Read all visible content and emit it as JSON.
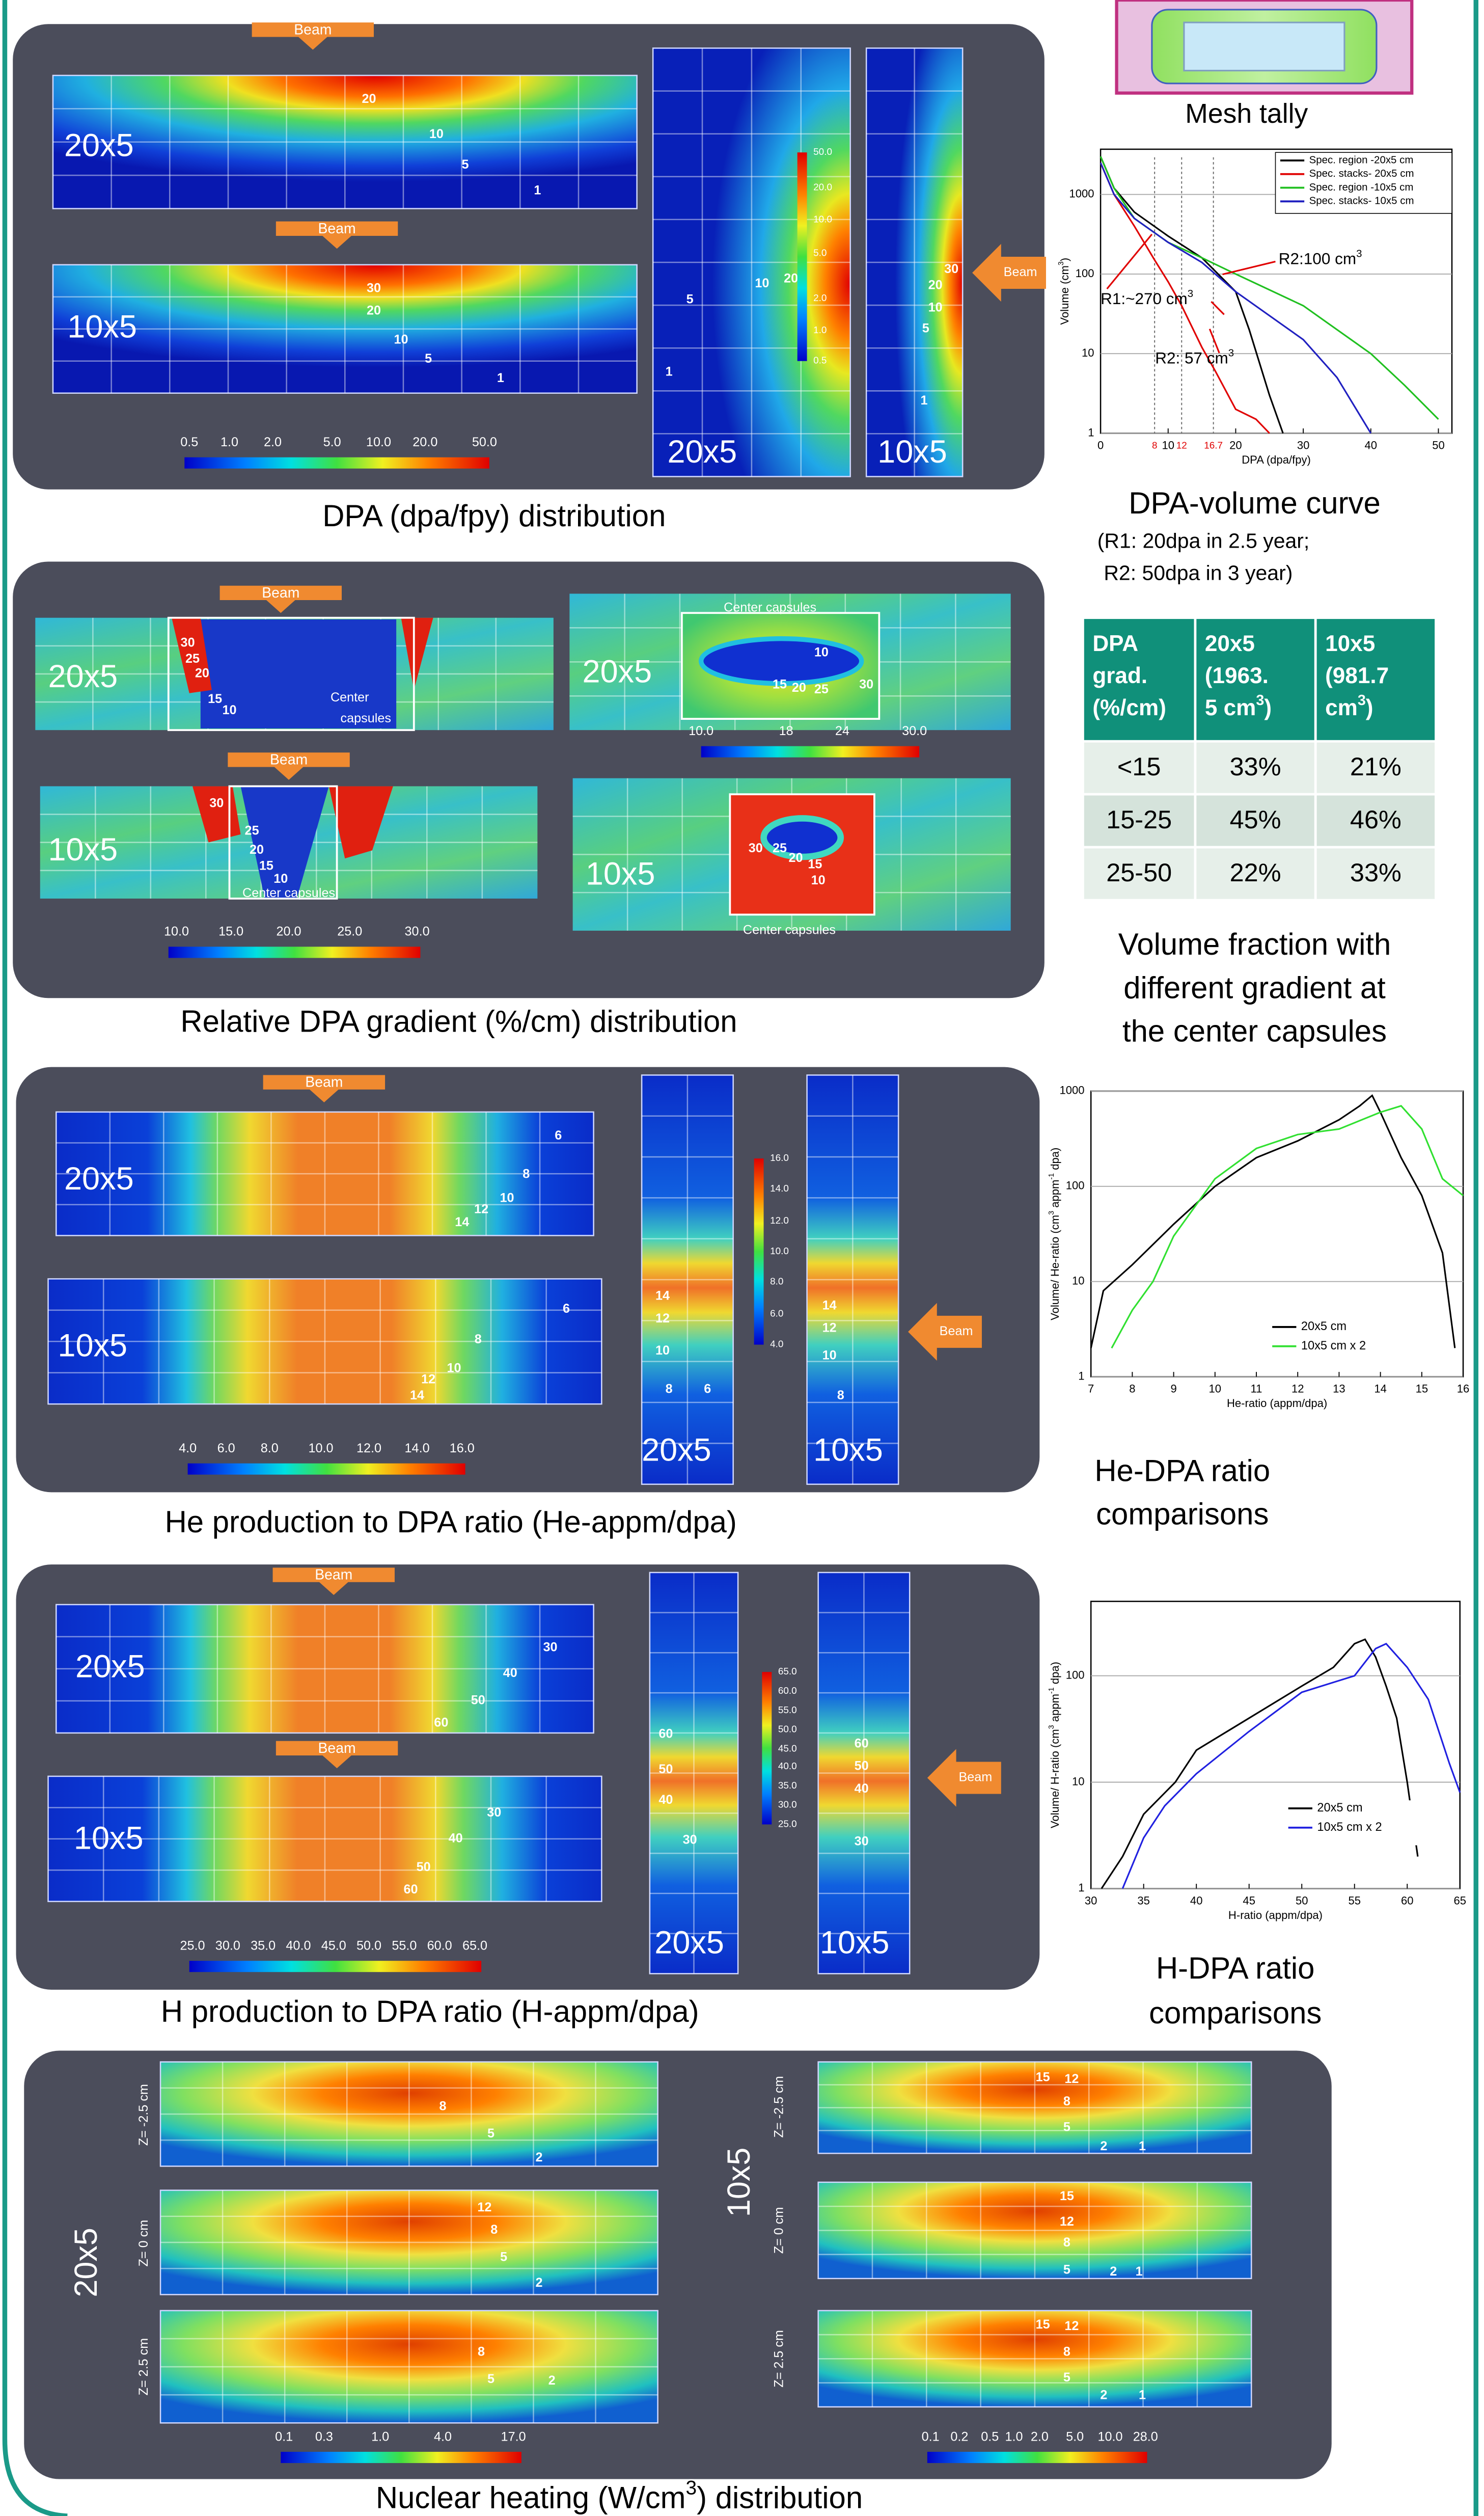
{
  "dpa": {
    "caption": "DPA (dpa/fpy) distribution",
    "beam": "Beam",
    "maps": [
      {
        "label": "20x5",
        "contours": [
          20,
          10,
          5,
          1
        ]
      },
      {
        "label": "10x5",
        "contours": [
          30,
          20,
          10,
          5,
          1
        ]
      },
      {
        "label": "20x5",
        "contours": [
          20,
          10,
          5,
          1
        ]
      },
      {
        "label": "10x5",
        "contours": [
          30,
          20,
          10,
          5,
          1
        ]
      }
    ],
    "colorbar": [
      "0.5",
      "1.0",
      "2.0",
      "5.0",
      "10.0",
      "20.0",
      "50.0"
    ],
    "colorbar_vertical": [
      "50.0",
      "20.0",
      "10.0",
      "5.0",
      "2.0",
      "1.0",
      "0.5"
    ]
  },
  "gradient": {
    "caption": "Relative DPA gradient (%/cm) distribution",
    "beam": "Beam",
    "center": [
      "Center",
      "capsules"
    ],
    "center_line": "Center capsules",
    "maps": [
      {
        "label": "20x5",
        "contours": [
          30,
          25,
          20,
          15,
          10
        ]
      },
      {
        "label": "20x5",
        "contours": [
          10,
          15,
          20,
          25,
          30
        ]
      },
      {
        "label": "10x5",
        "contours": [
          30,
          25,
          20,
          15,
          10
        ]
      },
      {
        "label": "10x5",
        "contours": [
          30,
          25,
          20,
          15,
          10
        ]
      }
    ],
    "colorbar": [
      "10.0",
      "15.0",
      "20.0",
      "25.0",
      "30.0"
    ],
    "colorbar_top": [
      "10.0",
      "18",
      "24",
      "30.0"
    ]
  },
  "he": {
    "caption": "He production to DPA ratio (He-appm/dpa)",
    "beam": "Beam",
    "maps": [
      {
        "label": "20x5",
        "contours": [
          6,
          8,
          10,
          12,
          14
        ]
      },
      {
        "label": "10x5",
        "contours": [
          6,
          8,
          10,
          12,
          14
        ]
      },
      {
        "label": "20x5",
        "contours": [
          14,
          12,
          10,
          8,
          6
        ]
      },
      {
        "label": "10x5",
        "contours": [
          14,
          12,
          10,
          8
        ]
      }
    ],
    "colorbar": [
      "4.0",
      "6.0",
      "8.0",
      "10.0",
      "12.0",
      "14.0",
      "16.0"
    ],
    "colorbar_vertical": [
      "16.0",
      "14.0",
      "12.0",
      "10.0",
      "8.0",
      "6.0",
      "4.0"
    ]
  },
  "h": {
    "caption": "H production to DPA ratio (H-appm/dpa)",
    "beam": "Beam",
    "maps": [
      {
        "label": "20x5",
        "contours": [
          30,
          40,
          50,
          60
        ]
      },
      {
        "label": "10x5",
        "contours": [
          30,
          40,
          50,
          60
        ]
      },
      {
        "label": "20x5",
        "contours": [
          60,
          50,
          40,
          30
        ]
      },
      {
        "label": "10x5",
        "contours": [
          60,
          50,
          40,
          30
        ]
      }
    ],
    "colorbar": [
      "25.0",
      "30.0",
      "35.0",
      "40.0",
      "45.0",
      "50.0",
      "55.0",
      "60.0",
      "65.0"
    ],
    "colorbar_vertical": [
      "65.0",
      "60.0",
      "55.0",
      "50.0",
      "45.0",
      "40.0",
      "35.0",
      "30.0",
      "25.0"
    ]
  },
  "heating": {
    "caption": [
      "Nuclear heating (W/cm",
      "3",
      ") distribution"
    ],
    "groups": [
      {
        "label": "20x5",
        "planes": [
          {
            "z": "Z= -2.5 cm",
            "contours": [
              8,
              5,
              2
            ]
          },
          {
            "z": "Z= 0 cm",
            "contours": [
              12,
              8,
              5,
              2
            ]
          },
          {
            "z": "Z= 2.5 cm",
            "contours": [
              8,
              5,
              2
            ]
          }
        ],
        "colorbar": [
          "0.1",
          "0.3",
          "1.0",
          "4.0",
          "17.0"
        ]
      },
      {
        "label": "10x5",
        "planes": [
          {
            "z": "Z= -2.5 cm",
            "contours": [
              15,
              12,
              8,
              5,
              2,
              1
            ]
          },
          {
            "z": "Z= 0 cm",
            "contours": [
              15,
              12,
              8,
              5,
              2,
              1
            ]
          },
          {
            "z": "Z= 2.5 cm",
            "contours": [
              15,
              12,
              8,
              5,
              2,
              1
            ]
          }
        ],
        "colorbar": [
          "0.1",
          "0.2",
          "0.5",
          "1.0",
          "2.0",
          "5.0",
          "10.0",
          "28.0"
        ]
      }
    ]
  },
  "mesh_tally": {
    "caption": "Mesh tally"
  },
  "dpa_volume": {
    "type": "line",
    "caption": "DPA-volume curve",
    "notes": [
      "(R1: 20dpa in 2.5 year;",
      "R2: 50dpa in 3 year)"
    ],
    "x_label": "DPA (dpa/fpy)",
    "y_label": [
      "Volume (cm",
      "3",
      ")"
    ],
    "log_y": true,
    "xlim": [
      0,
      52
    ],
    "xticks": [
      0,
      10,
      20,
      30,
      40,
      50
    ],
    "ylim": [
      1,
      3700
    ],
    "yticks": [
      1,
      10,
      100,
      1000
    ],
    "markers": [
      8,
      12,
      16.7
    ],
    "marker_color": "#e00000",
    "annotations": [
      [
        "R2:100 cm",
        "3"
      ],
      [
        "R1:~270 cm",
        "3"
      ],
      [
        "R2: 57 cm",
        "3"
      ]
    ],
    "series": [
      {
        "name": "Spec. region -20x5 cm",
        "color": "#000000",
        "x": [
          0,
          2,
          5,
          10,
          15,
          20,
          22,
          25,
          27
        ],
        "values": [
          3000,
          1200,
          600,
          300,
          160,
          60,
          20,
          3,
          1
        ]
      },
      {
        "name": "Spec. stacks- 20x5 cm",
        "color": "#e00000",
        "x": [
          0,
          2,
          5,
          8,
          10,
          12,
          15,
          17,
          20,
          23,
          25
        ],
        "values": [
          2500,
          1000,
          400,
          150,
          80,
          40,
          12,
          6,
          2,
          1.5,
          1
        ]
      },
      {
        "name": "Spec. region -10x5 cm",
        "color": "#20c020",
        "x": [
          0,
          2,
          5,
          10,
          15,
          20,
          30,
          40,
          45,
          50
        ],
        "values": [
          3000,
          1200,
          500,
          250,
          160,
          100,
          40,
          10,
          4,
          1.5
        ]
      },
      {
        "name": "Spec. stacks- 10x5 cm",
        "color": "#2020c0",
        "x": [
          0,
          2,
          5,
          10,
          15,
          20,
          30,
          35,
          40
        ],
        "values": [
          2500,
          1000,
          500,
          250,
          140,
          60,
          15,
          5,
          1
        ]
      }
    ]
  },
  "table": {
    "header": [
      [
        "DPA",
        "grad.",
        "(%/cm)"
      ],
      [
        "20x5",
        "(1963.",
        [
          "5 cm",
          "3",
          ")"
        ]
      ],
      [
        "10x5",
        "(981.7",
        [
          "cm",
          "3",
          ")"
        ]
      ]
    ],
    "rows": [
      [
        "<15",
        "33%",
        "21%"
      ],
      [
        "15-25",
        "45%",
        "46%"
      ],
      [
        "25-50",
        "22%",
        "33%"
      ]
    ],
    "caption": [
      "Volume fraction with",
      "different gradient at",
      "the center capsules"
    ]
  },
  "he_chart": {
    "type": "line",
    "caption": [
      "He-DPA ratio",
      "comparisons"
    ],
    "x_label": "He-ratio (appm/dpa)",
    "y_label": [
      "Volume/ He-ratio (cm",
      "3",
      " appm",
      "-1",
      " dpa)"
    ],
    "log_y": true,
    "xlim": [
      7,
      16
    ],
    "xticks": [
      7,
      8,
      9,
      10,
      11,
      12,
      13,
      14,
      15,
      16
    ],
    "ylim": [
      1,
      1000
    ],
    "yticks": [
      1,
      10,
      100,
      1000
    ],
    "series": [
      {
        "name": "20x5 cm",
        "color": "#000000",
        "x": [
          7,
          7.3,
          8,
          9,
          10,
          11,
          12,
          13,
          13.5,
          13.8,
          14,
          14.5,
          15,
          15.5,
          15.8
        ],
        "values": [
          2,
          8,
          15,
          40,
          100,
          200,
          300,
          500,
          700,
          900,
          600,
          200,
          80,
          20,
          2
        ]
      },
      {
        "name": "10x5 cm x 2",
        "color": "#30e030",
        "x": [
          7.5,
          8,
          8.5,
          9,
          10,
          11,
          12,
          13,
          14,
          14.5,
          15,
          15.5,
          16
        ],
        "values": [
          2,
          5,
          10,
          30,
          120,
          250,
          350,
          400,
          600,
          700,
          400,
          120,
          80
        ]
      }
    ]
  },
  "h_chart": {
    "type": "line",
    "caption": [
      "H-DPA ratio",
      "comparisons"
    ],
    "x_label": "H-ratio (appm/dpa)",
    "y_label": [
      "Volume/ H-ratio (cm",
      "3",
      " appm",
      "-1",
      " dpa)"
    ],
    "log_y": true,
    "xlim": [
      30,
      65
    ],
    "xticks": [
      30,
      35,
      40,
      45,
      50,
      55,
      60,
      65
    ],
    "ylim": [
      1,
      500
    ],
    "yticks": [
      1,
      10,
      100
    ],
    "series": [
      {
        "name": "20x5 cm",
        "color": "#000000",
        "x": [
          31,
          33,
          35,
          38,
          40,
          45,
          50,
          53,
          55,
          56,
          57,
          58,
          59,
          60,
          61
        ],
        "values": [
          1,
          2,
          5,
          10,
          20,
          40,
          80,
          120,
          200,
          220,
          150,
          80,
          40,
          10,
          2
        ]
      },
      {
        "name": "10x5 cm x 2",
        "color": "#2020e0",
        "x": [
          33,
          35,
          37,
          40,
          45,
          50,
          55,
          57,
          58,
          60,
          62,
          64,
          65
        ],
        "values": [
          1,
          3,
          6,
          12,
          30,
          70,
          100,
          180,
          200,
          120,
          60,
          15,
          8
        ]
      }
    ]
  }
}
